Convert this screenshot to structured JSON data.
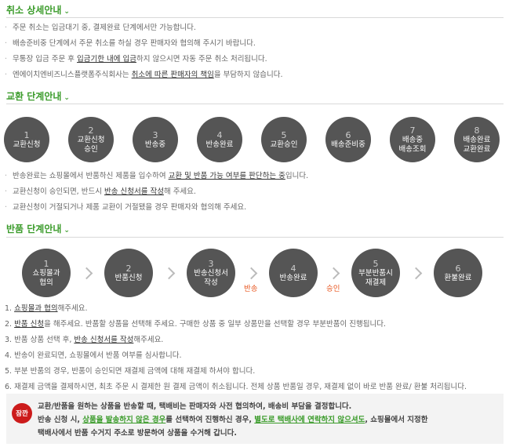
{
  "cancel": {
    "title": "취소 상세안내",
    "items": [
      [
        "주문 취소는 입금대기 중, 결제완료 단계에서만 가능합니다.",
        "",
        ""
      ],
      [
        "배송준비중 단계에서 주문 취소를 하실 경우 판매자와 협의해 주시기 바랍니다.",
        "",
        ""
      ],
      [
        "무통장 입금 주문 후 ",
        "입금기한 내에 입금",
        "하지 않으시면 자동 주문 취소 처리됩니다."
      ],
      [
        "엔에이치엔비즈니스플랫폼주식회사는 ",
        "취소에 따른 판매자의 책임",
        "을 부담하지 않습니다."
      ]
    ]
  },
  "exchange": {
    "title": "교환 단계안내",
    "steps": [
      {
        "num": "1",
        "label": "교환신청"
      },
      {
        "num": "2",
        "label": "교환신청\n승인"
      },
      {
        "num": "3",
        "label": "반송중"
      },
      {
        "num": "4",
        "label": "반송완료"
      },
      {
        "num": "5",
        "label": "교환승인"
      },
      {
        "num": "6",
        "label": "배송준비중"
      },
      {
        "num": "7",
        "label": "배송중\n배송조회"
      },
      {
        "num": "8",
        "label": "배송완료\n교환완료"
      }
    ],
    "items": [
      [
        "반송완료는 쇼핑몰에서 반품하신 제품을 입수하여 ",
        "교환 및 반품 가능 여부를 판단하는 중",
        "입니다."
      ],
      [
        "교환신청이 승인되면, 반드시 ",
        "반송 신청서를 작성",
        "해 주세요."
      ],
      [
        "교환신청이 거절되거나 제품 교환이 거절됐을 경우 판매자와 협의해 주세요.",
        "",
        ""
      ]
    ]
  },
  "return": {
    "title": "반품 단계안내",
    "steps": [
      {
        "num": "1",
        "label": "쇼핑몰과\n협의"
      },
      {
        "num": "2",
        "label": "반품신청"
      },
      {
        "num": "3",
        "label": "반송신청서\n작성"
      },
      {
        "num": "4",
        "label": "반송완료"
      },
      {
        "num": "5",
        "label": "부분반품시\n재결제"
      },
      {
        "num": "6",
        "label": "환불완료"
      }
    ],
    "arrow_labels": [
      "",
      "",
      "반송",
      "승인",
      ""
    ],
    "items": [
      [
        "1. ",
        "쇼핑몰과 협의",
        "해주세요."
      ],
      [
        "2. ",
        "반품 신청",
        "을 해주세요. 반품할 상품을 선택해 주세요. 구매한 상품 중 일부 상품만을 선택할 경우 부분반품이 진행됩니다."
      ],
      [
        "3. 반품 상품 선택 후, ",
        "반송 신청서를 작성",
        "해주세요."
      ],
      [
        "4. 반송이 완료되면, 쇼핑몰에서 반품 여부를 심사합니다.",
        "",
        ""
      ],
      [
        "5. 부분 반품의 경우, 반품이 승인되면 재결제 금액에 대해 재결제 하셔야 합니다.",
        "",
        ""
      ],
      [
        "6. 재결제 금액을 결제하시면, 최초 주문 시 결제한 원 결제 금액이 취소됩니다. 전체 상품 반품일 경우, 재결제 없이 바로 반품 완료/ 환불 처리됩니다.",
        "",
        ""
      ]
    ]
  },
  "notice": {
    "badge": "잠깐",
    "line1": "교환/반품을 원하는 상품을 반송할 때, 택배비는 판매자와 사전 협의하여, 배송비 부담을 결정합니다.",
    "line2_a": "반송 신청 시, ",
    "line2_b": "상품을 발송하지 않은 경우",
    "line2_c": "를 선택하여 진행하신 경우, ",
    "line2_d": "별도로 택배사에 연락하지 않으셔도",
    "line2_e": ", 쇼핑몰에서 지정한",
    "line3": "택배사에서 반품 수거지 주소로 방문하여 상품을 수거해 갑니다."
  },
  "colors": {
    "accent": "#3a9b2a",
    "step": "#555555",
    "arrow_label": "#e8561f",
    "badge": "#cc1b1b"
  }
}
